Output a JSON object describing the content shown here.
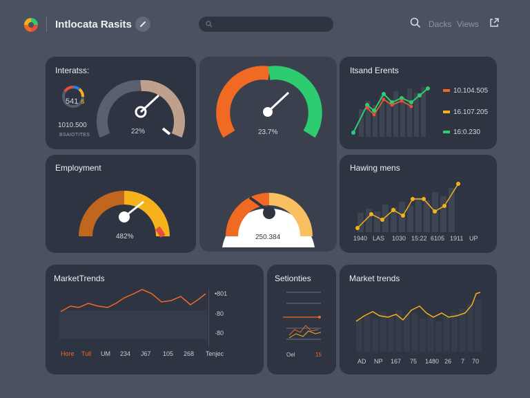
{
  "header": {
    "title": "Intlocata Rasits",
    "search_placeholder": "",
    "nav": [
      "Dacks",
      "Views"
    ]
  },
  "cards": {
    "interests": {
      "title": "Interatss:",
      "ring_value": "541",
      "ring_suffix": "s",
      "big_number": "1010.500",
      "caption": "BSAIOTITES",
      "gauge_label": "22%"
    },
    "center_top": {
      "gauge_label": "23.7%"
    },
    "trends_right": {
      "title": "Itsand Erents",
      "legend": [
        "10.104.505",
        "16.107.205",
        "16:0.230"
      ]
    },
    "employment": {
      "title": "Employment",
      "gauge_label": "482%"
    },
    "center_bottom": {
      "gauge_label": "250.384"
    },
    "having": {
      "title": "Hawing mens",
      "ticks": [
        "1940",
        "LAS",
        "1030",
        "15:22",
        "6105",
        "1911",
        "UP"
      ]
    },
    "market_left": {
      "title": "MarketTrends",
      "yticks": [
        "•801",
        "·80",
        "·80"
      ],
      "xticks": [
        "Hore",
        "Tull",
        "UM",
        "234",
        "J67",
        "105",
        "268",
        "Tenjec"
      ]
    },
    "stationes": {
      "title": "Setionties",
      "xticks": [
        "Oel",
        "15"
      ]
    },
    "market_right": {
      "title": "Market trends",
      "xticks": [
        "AD",
        "NP",
        "167",
        "75",
        "1480",
        "26",
        "7",
        "70"
      ]
    }
  },
  "colors": {
    "orange": "#f06a24",
    "green": "#2ecc71",
    "yellow": "#f5b21c",
    "tan": "#bfa08c",
    "slate": "#5a616e"
  }
}
